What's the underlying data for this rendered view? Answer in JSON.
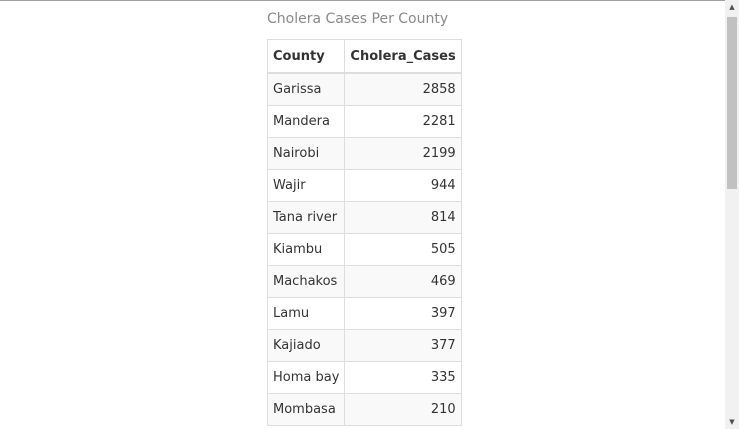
{
  "table": {
    "caption": "Cholera Cases Per County",
    "headers": [
      "County",
      "Cholera_Cases"
    ],
    "rows": [
      [
        "Garissa",
        "2858"
      ],
      [
        "Mandera",
        "2281"
      ],
      [
        "Nairobi",
        "2199"
      ],
      [
        "Wajir",
        "944"
      ],
      [
        "Tana river",
        "814"
      ],
      [
        "Kiambu",
        "505"
      ],
      [
        "Machakos",
        "469"
      ],
      [
        "Lamu",
        "397"
      ],
      [
        "Kajiado",
        "377"
      ],
      [
        "Homa bay",
        "335"
      ],
      [
        "Mombasa",
        "210"
      ]
    ]
  },
  "scrollbar": {
    "up_glyph": "▲",
    "down_glyph": "▼",
    "position": 0.0
  }
}
